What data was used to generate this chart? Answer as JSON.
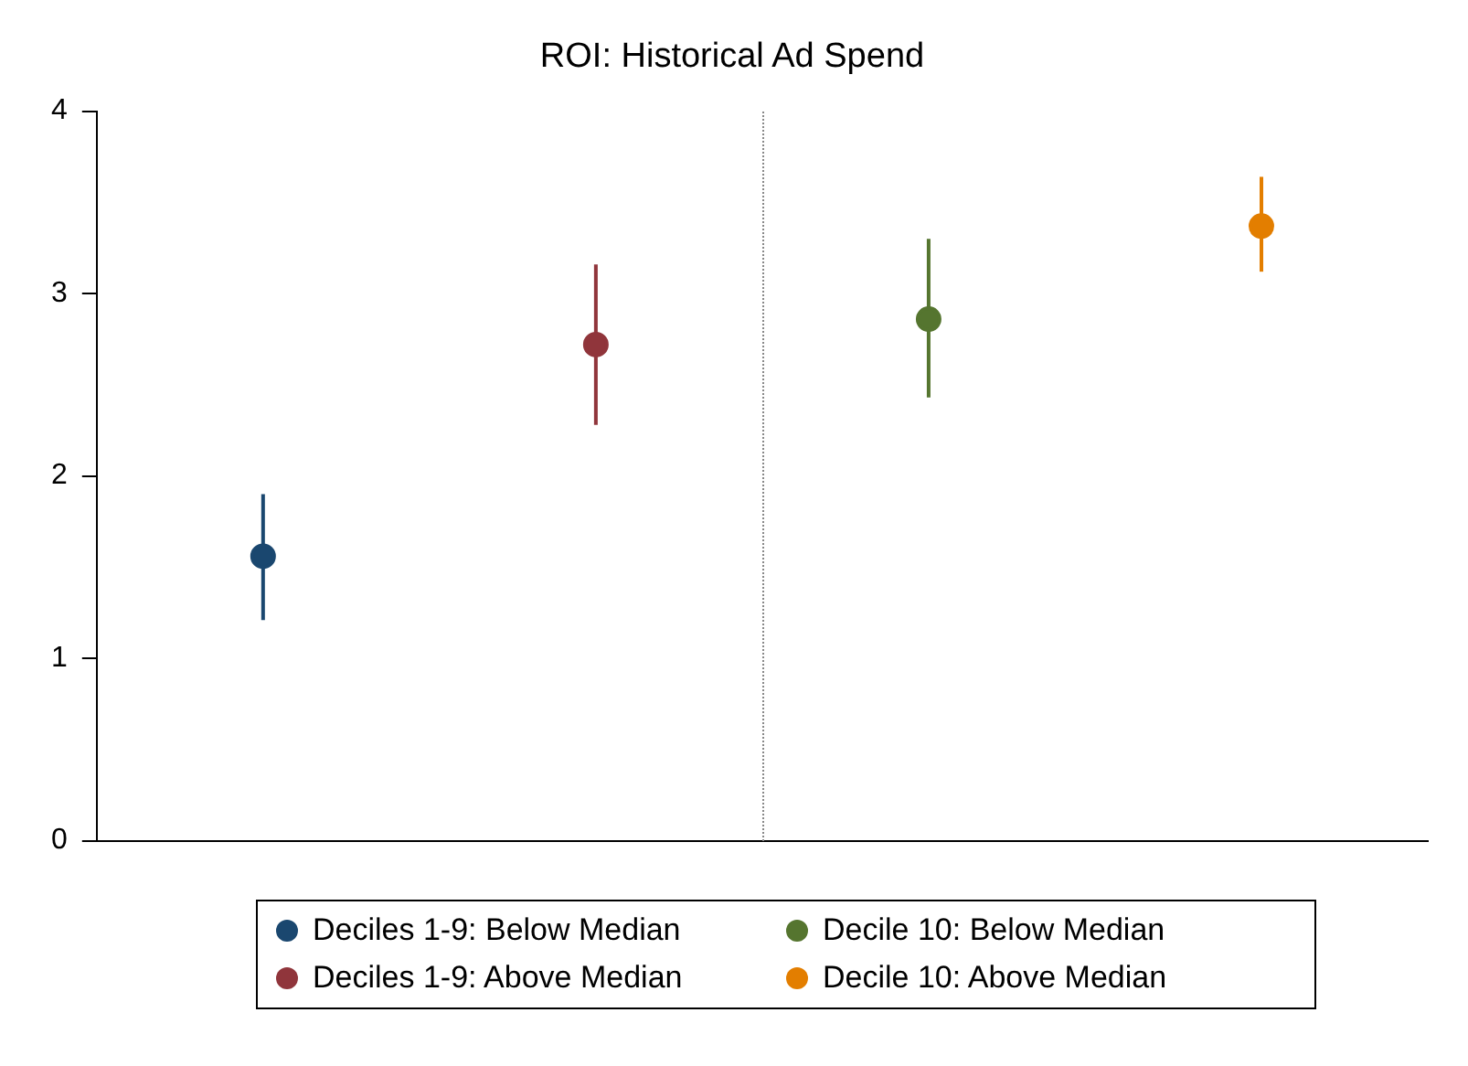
{
  "chart_data": {
    "type": "scatter",
    "title": "ROI: Historical Ad Spend",
    "categories": [
      null,
      null,
      null,
      null
    ],
    "ylim": [
      0,
      4
    ],
    "yticks": [
      0,
      1,
      2,
      3,
      4
    ],
    "grid": false,
    "legend": "bottom",
    "marker": "circle",
    "series": [
      {
        "name": "Deciles 1-9: Below Median",
        "color": "#1a476f",
        "values": [
          1.56,
          null,
          null,
          null
        ],
        "errors": [
          [
            1.21,
            1.9
          ],
          null,
          null,
          null
        ]
      },
      {
        "name": "Deciles 1-9: Above Median",
        "color": "#90353b",
        "values": [
          null,
          2.72,
          null,
          null
        ],
        "errors": [
          null,
          [
            2.28,
            3.16
          ],
          null,
          null
        ]
      },
      {
        "name": "Decile 10: Below Median",
        "color": "#55752f",
        "values": [
          null,
          null,
          2.86,
          null
        ],
        "errors": [
          null,
          null,
          [
            2.43,
            3.3
          ],
          null
        ]
      },
      {
        "name": "Decile 10: Above Median",
        "color": "#e37e00",
        "values": [
          null,
          null,
          null,
          3.37
        ],
        "errors": [
          null,
          null,
          null,
          [
            3.12,
            3.64
          ]
        ]
      }
    ]
  }
}
